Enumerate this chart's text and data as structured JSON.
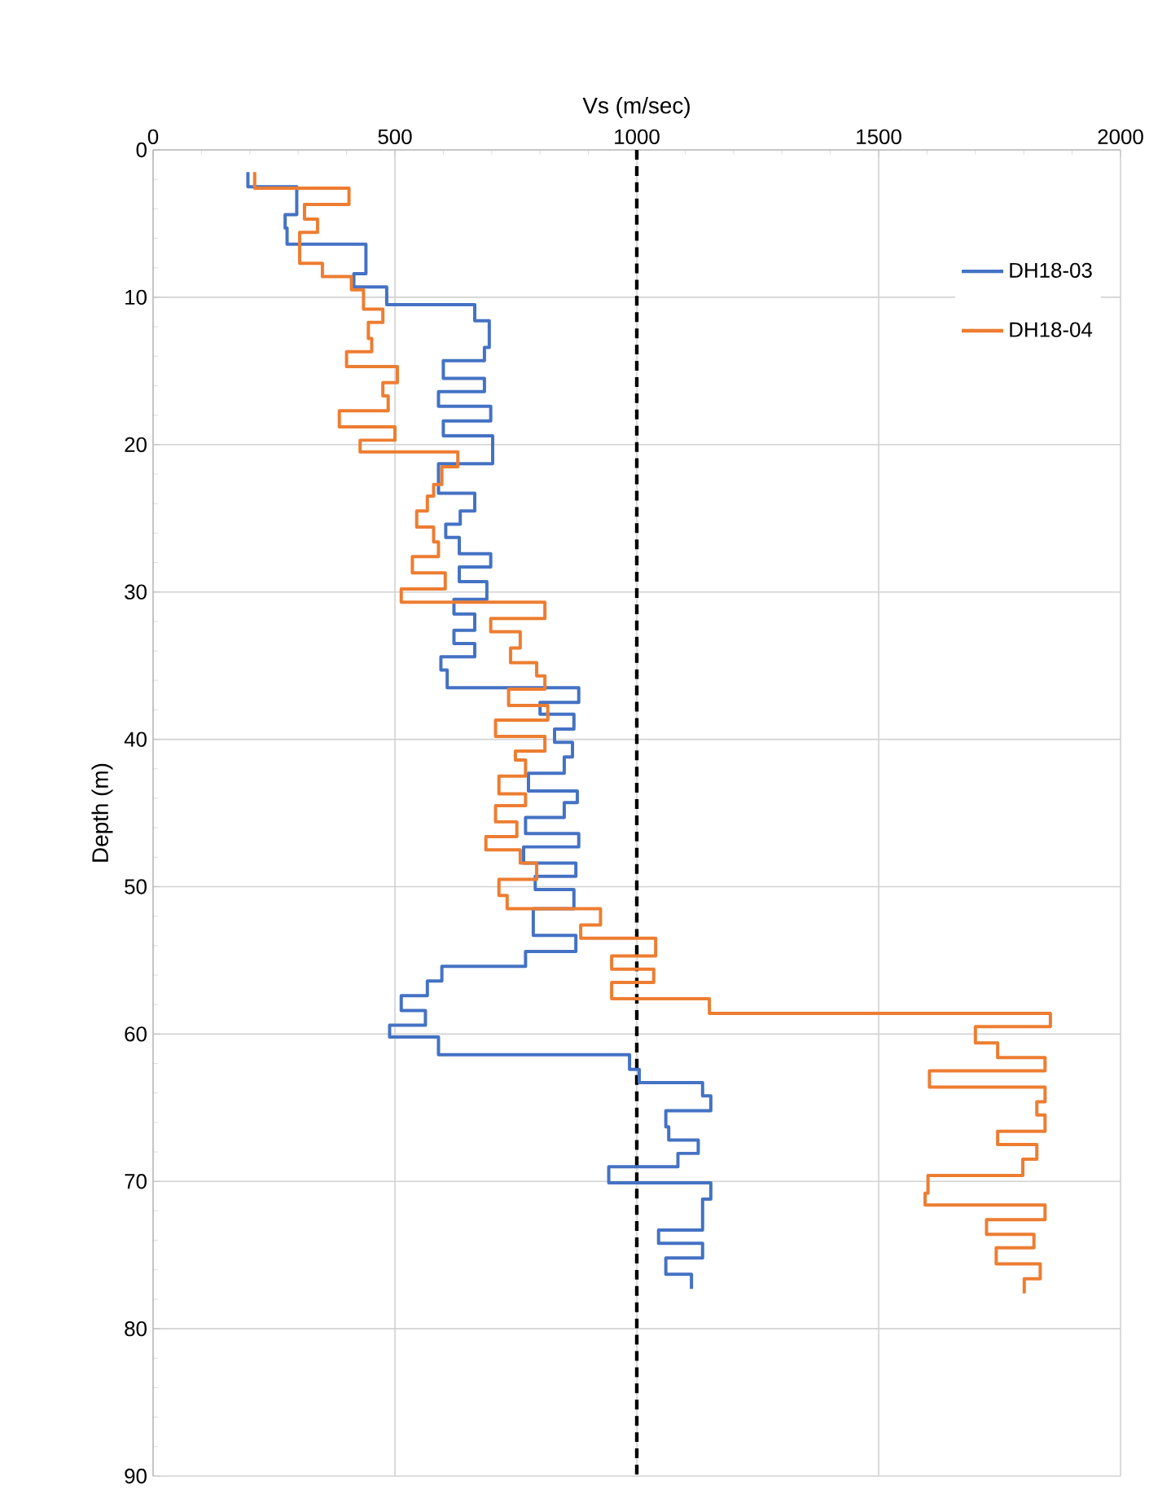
{
  "chart_data": {
    "type": "line",
    "xlabel": "Vs (m/sec)",
    "ylabel": "Depth (m)",
    "xlim": [
      0,
      2000
    ],
    "xticks": [
      0,
      500,
      1000,
      1500,
      2000
    ],
    "ylim": [
      90,
      0
    ],
    "yticks": [
      0,
      10,
      20,
      30,
      40,
      50,
      60,
      70,
      80,
      90
    ],
    "grid": true,
    "legend": "top right",
    "marker": "none",
    "line_style": "solid",
    "ref_lines": [
      {
        "axis": "x",
        "value": 1000,
        "color": "#000000",
        "line_style": "dashed"
      }
    ],
    "series": [
      {
        "name": "DH18-03",
        "color": "#4472c4",
        "x": [
          196,
          196,
          297,
          297,
          273,
          273,
          277,
          277,
          440,
          440,
          415,
          415,
          483,
          483,
          665,
          665,
          695,
          695,
          685,
          685,
          600,
          600,
          685,
          685,
          590,
          590,
          698,
          698,
          600,
          600,
          702,
          702,
          590,
          590,
          665,
          665,
          635,
          635,
          605,
          605,
          633,
          633,
          698,
          698,
          633,
          633,
          690,
          690,
          622,
          622,
          665,
          665,
          622,
          622,
          665,
          665,
          595,
          595,
          608,
          608,
          880,
          880,
          800,
          800,
          870,
          870,
          830,
          830,
          867,
          867,
          850,
          850,
          776,
          776,
          877,
          877,
          850,
          850,
          770,
          770,
          880,
          880,
          766,
          766,
          874,
          874,
          790,
          790,
          870,
          870,
          786,
          786,
          874,
          874,
          770,
          770,
          597,
          597,
          567,
          567,
          513,
          513,
          563,
          563,
          489,
          489,
          590,
          590,
          985,
          985,
          1005,
          1005,
          1136,
          1136,
          1153,
          1153,
          1060,
          1060,
          1066,
          1066,
          1127,
          1127,
          1085,
          1085,
          942,
          942,
          1153,
          1153,
          1136,
          1136,
          1045,
          1045,
          1136,
          1136,
          1060,
          1060,
          1113,
          1113
        ],
        "values": [
          1.5,
          2.5,
          2.5,
          4.4,
          4.4,
          5.3,
          5.3,
          6.4,
          6.4,
          8.4,
          8.4,
          9.3,
          9.3,
          10.5,
          10.5,
          11.6,
          11.6,
          13.4,
          13.4,
          14.3,
          14.3,
          15.5,
          15.5,
          16.4,
          16.4,
          17.4,
          17.4,
          18.4,
          18.4,
          19.4,
          19.4,
          21.3,
          21.3,
          23.3,
          23.3,
          24.5,
          24.5,
          25.4,
          25.4,
          26.3,
          26.3,
          27.4,
          27.4,
          28.3,
          28.3,
          29.3,
          29.3,
          30.5,
          30.5,
          31.5,
          31.5,
          32.6,
          32.6,
          33.5,
          33.5,
          34.4,
          34.4,
          35.3,
          35.3,
          36.5,
          36.5,
          37.5,
          37.5,
          38.3,
          38.3,
          39.3,
          39.3,
          40.2,
          40.2,
          41.2,
          41.2,
          42.3,
          42.3,
          43.5,
          43.5,
          44.3,
          44.3,
          45.3,
          45.3,
          46.4,
          46.4,
          47.3,
          47.3,
          48.4,
          48.4,
          49.3,
          49.3,
          50.2,
          50.2,
          51.5,
          51.5,
          53.3,
          53.3,
          54.4,
          54.4,
          55.4,
          55.4,
          56.4,
          56.4,
          57.4,
          57.4,
          58.4,
          58.4,
          59.4,
          59.4,
          60.2,
          60.2,
          61.4,
          61.4,
          62.4,
          62.4,
          63.3,
          63.3,
          64.2,
          64.2,
          65.2,
          65.2,
          66.3,
          66.3,
          67.2,
          67.2,
          68.1,
          68.1,
          69.0,
          69.0,
          70.1,
          70.1,
          71.2,
          71.2,
          73.3,
          73.3,
          74.2,
          74.2,
          75.2,
          75.2,
          76.3,
          76.3,
          77.3
        ]
      },
      {
        "name": "DH18-04",
        "color": "#ed7d31",
        "x": [
          210,
          210,
          405,
          405,
          313,
          313,
          340,
          340,
          303,
          303,
          350,
          350,
          410,
          410,
          435,
          435,
          475,
          475,
          445,
          445,
          452,
          452,
          400,
          400,
          505,
          505,
          475,
          475,
          486,
          486,
          385,
          385,
          500,
          500,
          428,
          428,
          630,
          630,
          597,
          597,
          580,
          580,
          567,
          567,
          545,
          545,
          580,
          580,
          590,
          590,
          536,
          536,
          604,
          604,
          513,
          513,
          810,
          810,
          698,
          698,
          759,
          759,
          739,
          739,
          793,
          793,
          810,
          810,
          735,
          735,
          816,
          816,
          708,
          708,
          810,
          810,
          749,
          749,
          770,
          770,
          715,
          715,
          770,
          770,
          708,
          708,
          752,
          752,
          688,
          688,
          759,
          759,
          793,
          793,
          715,
          715,
          732,
          732,
          925,
          925,
          884,
          884,
          1039,
          1039,
          948,
          948,
          1035,
          1035,
          948,
          948,
          1150,
          1150,
          1855,
          1855,
          1700,
          1700,
          1746,
          1746,
          1844,
          1844,
          1605,
          1605,
          1844,
          1844,
          1827,
          1827,
          1844,
          1844,
          1746,
          1746,
          1827,
          1827,
          1798,
          1798,
          1602,
          1602,
          1596,
          1596,
          1844,
          1844,
          1723,
          1723,
          1821,
          1821,
          1743,
          1743,
          1834,
          1834,
          1801,
          1801
        ],
        "values": [
          1.5,
          2.6,
          2.6,
          3.7,
          3.7,
          4.7,
          4.7,
          5.6,
          5.6,
          7.7,
          7.7,
          8.6,
          8.6,
          9.5,
          9.5,
          10.8,
          10.8,
          11.7,
          11.7,
          12.8,
          12.8,
          13.7,
          13.7,
          14.7,
          14.7,
          15.8,
          15.8,
          16.7,
          16.7,
          17.7,
          17.7,
          18.8,
          18.8,
          19.7,
          19.7,
          20.5,
          20.5,
          21.5,
          21.5,
          22.7,
          22.7,
          23.5,
          23.5,
          24.5,
          24.5,
          25.6,
          25.6,
          26.6,
          26.6,
          27.6,
          27.6,
          28.7,
          28.7,
          29.8,
          29.8,
          30.7,
          30.7,
          31.8,
          31.8,
          32.7,
          32.7,
          33.8,
          33.8,
          34.8,
          34.8,
          35.7,
          35.7,
          36.6,
          36.6,
          37.7,
          37.7,
          38.7,
          38.7,
          39.8,
          39.8,
          40.8,
          40.8,
          41.4,
          41.4,
          42.5,
          42.5,
          43.7,
          43.7,
          44.5,
          44.5,
          45.6,
          45.6,
          46.6,
          46.6,
          47.5,
          47.5,
          48.4,
          48.4,
          49.5,
          49.5,
          50.6,
          50.6,
          51.5,
          51.5,
          52.6,
          52.6,
          53.5,
          53.5,
          54.7,
          54.7,
          55.6,
          55.6,
          56.5,
          56.5,
          57.6,
          57.6,
          58.6,
          58.6,
          59.5,
          59.5,
          60.6,
          60.6,
          61.6,
          61.6,
          62.5,
          62.5,
          63.6,
          63.6,
          64.6,
          64.6,
          65.5,
          65.5,
          66.6,
          66.6,
          67.5,
          67.5,
          68.5,
          68.5,
          69.6,
          69.6,
          70.8,
          70.8,
          71.6,
          71.6,
          72.6,
          72.6,
          73.6,
          73.6,
          74.5,
          74.5,
          75.6,
          75.6,
          76.6,
          76.6,
          77.6
        ]
      }
    ]
  }
}
